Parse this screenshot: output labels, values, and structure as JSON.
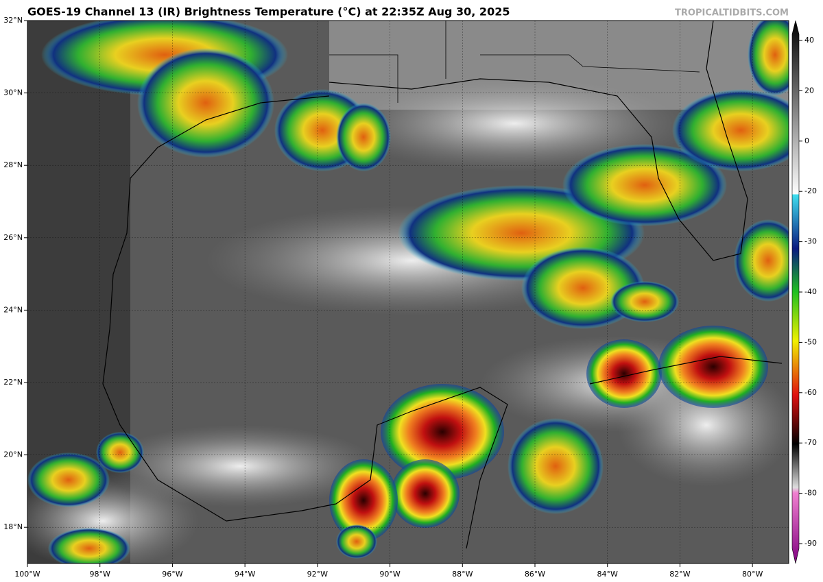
{
  "header": {
    "title": "GOES-19 Channel 13 (IR) Brightness Temperature (°C) at 22:35Z Aug 30, 2025",
    "watermark": "TROPICALTIDBITS.COM"
  },
  "map": {
    "xlim": [
      -100,
      -79
    ],
    "ylim": [
      17,
      32
    ],
    "xticks": [
      {
        "value": -100,
        "label": "100°W"
      },
      {
        "value": -98,
        "label": "98°W"
      },
      {
        "value": -96,
        "label": "96°W"
      },
      {
        "value": -94,
        "label": "94°W"
      },
      {
        "value": -92,
        "label": "92°W"
      },
      {
        "value": -90,
        "label": "90°W"
      },
      {
        "value": -88,
        "label": "88°W"
      },
      {
        "value": -86,
        "label": "86°W"
      },
      {
        "value": -84,
        "label": "84°W"
      },
      {
        "value": -82,
        "label": "82°W"
      },
      {
        "value": -80,
        "label": "80°W"
      }
    ],
    "yticks": [
      {
        "value": 32,
        "label": "32°N"
      },
      {
        "value": 30,
        "label": "30°N"
      },
      {
        "value": 28,
        "label": "28°N"
      },
      {
        "value": 26,
        "label": "26°N"
      },
      {
        "value": 24,
        "label": "24°N"
      },
      {
        "value": 22,
        "label": "22°N"
      },
      {
        "value": 20,
        "label": "20°N"
      },
      {
        "value": 18,
        "label": "18°N"
      }
    ]
  },
  "colorbar": {
    "ticks": [
      40,
      20,
      0,
      -20,
      -30,
      -40,
      -50,
      -60,
      -70,
      -80,
      -90
    ]
  }
}
